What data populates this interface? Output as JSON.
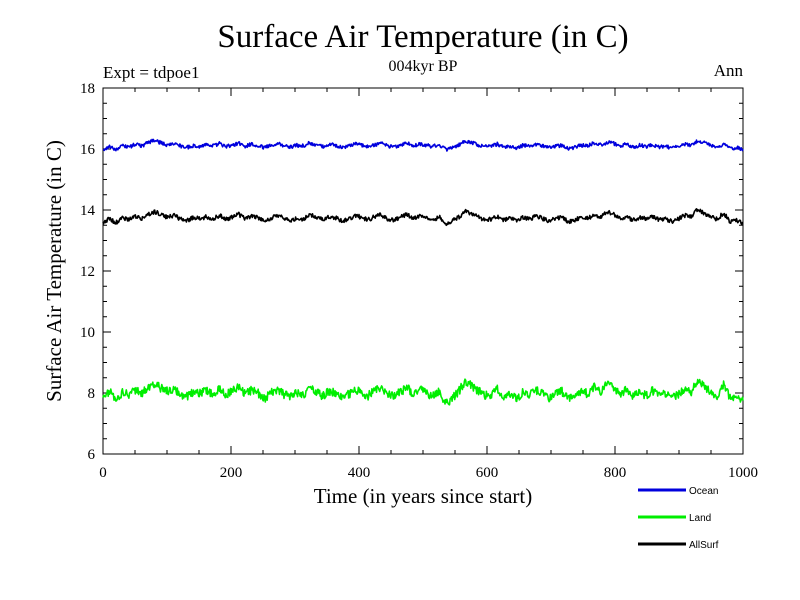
{
  "chart_data": {
    "type": "line",
    "title": "Surface Air Temperature (in C)",
    "subtitle": "004kyr BP",
    "left_label": "Expt = tdpoe1",
    "right_label": "Ann",
    "xlabel": "Time (in years since start)",
    "ylabel": "Surface Air Temperature (in C)",
    "xlim": [
      0,
      1000
    ],
    "ylim": [
      6,
      18
    ],
    "x_ticks": [
      0,
      200,
      400,
      600,
      800,
      1000
    ],
    "y_ticks": [
      6,
      8,
      10,
      12,
      14,
      16,
      18
    ],
    "grid": false,
    "legend_position": "bottom-right",
    "series": [
      {
        "name": "Ocean",
        "color": "#0000dd",
        "x_range": [
          0,
          1000
        ],
        "values": [
          15.98,
          16.08,
          16.0,
          16.1,
          16.05,
          16.16,
          16.1,
          16.22,
          16.28,
          16.2,
          16.12,
          16.18,
          16.1,
          16.05,
          16.12,
          16.08,
          16.14,
          16.1,
          16.18,
          16.08,
          16.12,
          16.2,
          16.1,
          16.15,
          16.1,
          16.05,
          16.12,
          16.18,
          16.1,
          16.06,
          16.12,
          16.1,
          16.2,
          16.14,
          16.08,
          16.16,
          16.12,
          16.05,
          16.1,
          16.18,
          16.12,
          16.08,
          16.14,
          16.18,
          16.1,
          16.06,
          16.12,
          16.2,
          16.1,
          16.16,
          16.12,
          16.08,
          16.14,
          15.98,
          16.04,
          16.12,
          16.26,
          16.22,
          16.14,
          16.08,
          16.1,
          16.16,
          16.06,
          16.1,
          16.04,
          16.12,
          16.08,
          16.14,
          16.1,
          16.04,
          16.1,
          16.12,
          16.0,
          16.06,
          16.12,
          16.1,
          16.2,
          16.14,
          16.22,
          16.18,
          16.1,
          16.16,
          16.06,
          16.12,
          16.08,
          16.14,
          16.06,
          16.1,
          16.02,
          16.08,
          16.16,
          16.12,
          16.28,
          16.2,
          16.12,
          16.08,
          16.16,
          16.0,
          16.04,
          16.0
        ]
      },
      {
        "name": "Land",
        "color": "#00ee00",
        "x_range": [
          0,
          1000
        ],
        "values": [
          7.9,
          8.05,
          7.75,
          8.0,
          7.95,
          8.1,
          8.0,
          8.2,
          8.3,
          8.15,
          8.05,
          8.12,
          7.95,
          7.9,
          8.05,
          7.98,
          8.08,
          7.95,
          8.15,
          7.95,
          8.05,
          8.2,
          7.95,
          8.1,
          8.0,
          7.8,
          8.02,
          8.12,
          7.95,
          7.88,
          8.0,
          7.95,
          8.15,
          8.02,
          7.9,
          8.06,
          8.0,
          7.85,
          7.95,
          8.1,
          8.02,
          7.9,
          8.08,
          8.15,
          7.98,
          7.9,
          8.02,
          8.2,
          7.96,
          8.1,
          8.02,
          7.9,
          8.06,
          7.65,
          7.82,
          8.05,
          8.35,
          8.25,
          8.08,
          7.92,
          7.95,
          8.12,
          7.88,
          8.0,
          7.82,
          8.02,
          7.95,
          8.08,
          7.98,
          7.85,
          7.96,
          8.05,
          7.78,
          7.9,
          8.05,
          7.98,
          8.2,
          8.02,
          8.35,
          8.2,
          7.98,
          8.1,
          7.88,
          8.02,
          7.92,
          8.08,
          7.9,
          7.98,
          7.82,
          7.95,
          8.1,
          8.05,
          8.45,
          8.2,
          8.02,
          7.92,
          8.25,
          7.85,
          7.88,
          7.75
        ]
      },
      {
        "name": "AllSurf",
        "color": "#000000",
        "x_range": [
          0,
          1000
        ],
        "values": [
          13.6,
          13.72,
          13.58,
          13.74,
          13.68,
          13.8,
          13.72,
          13.86,
          13.95,
          13.85,
          13.76,
          13.82,
          13.7,
          13.65,
          13.76,
          13.7,
          13.78,
          13.72,
          13.82,
          13.7,
          13.76,
          13.86,
          13.7,
          13.8,
          13.74,
          13.62,
          13.74,
          13.82,
          13.72,
          13.66,
          13.74,
          13.7,
          13.84,
          13.76,
          13.68,
          13.78,
          13.74,
          13.64,
          13.7,
          13.82,
          13.76,
          13.68,
          13.78,
          13.84,
          13.72,
          13.66,
          13.76,
          13.86,
          13.72,
          13.8,
          13.76,
          13.66,
          13.78,
          13.55,
          13.64,
          13.76,
          13.95,
          13.9,
          13.78,
          13.68,
          13.7,
          13.8,
          13.66,
          13.74,
          13.64,
          13.76,
          13.7,
          13.8,
          13.72,
          13.64,
          13.72,
          13.78,
          13.6,
          13.68,
          13.78,
          13.72,
          13.86,
          13.76,
          13.94,
          13.86,
          13.72,
          13.8,
          13.66,
          13.76,
          13.7,
          13.8,
          13.68,
          13.72,
          13.62,
          13.7,
          13.82,
          13.78,
          14.02,
          13.88,
          13.76,
          13.7,
          13.9,
          13.62,
          13.66,
          13.58
        ]
      }
    ]
  }
}
